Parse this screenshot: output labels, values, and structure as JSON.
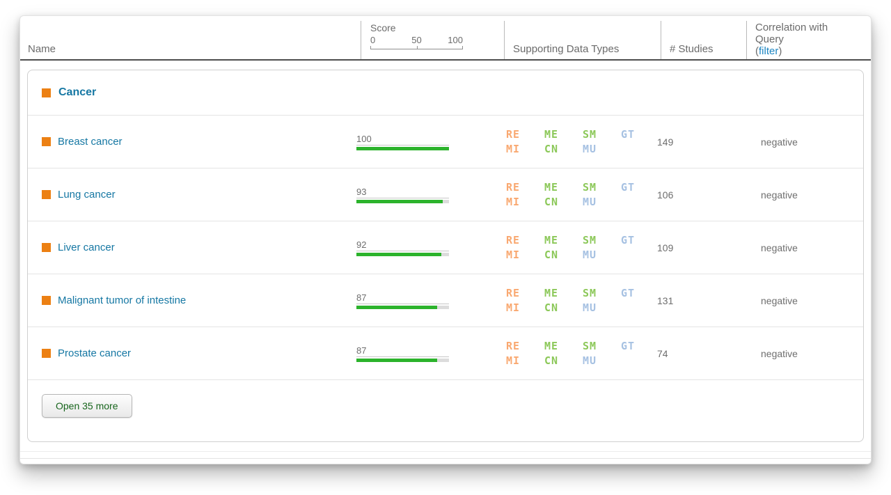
{
  "header": {
    "name": "Name",
    "score_label": "Score",
    "scale_ticks": [
      "0",
      "50",
      "100"
    ],
    "data_types": "Supporting Data Types",
    "studies": "# Studies",
    "correlation": {
      "line1": "Correlation with",
      "line2": "Query",
      "paren_open": "(",
      "filter": "filter",
      "paren_close": ")"
    }
  },
  "group": {
    "label": "Cancer"
  },
  "rows": [
    {
      "name": "Breast cancer",
      "score": 100,
      "studies": "149",
      "correlation": "negative"
    },
    {
      "name": "Lung cancer",
      "score": 93,
      "studies": "106",
      "correlation": "negative"
    },
    {
      "name": "Liver cancer",
      "score": 92,
      "studies": "109",
      "correlation": "negative"
    },
    {
      "name": "Malignant tumor of intestine",
      "score": 87,
      "studies": "131",
      "correlation": "negative"
    },
    {
      "name": "Prostate cancer",
      "score": 87,
      "studies": "74",
      "correlation": "negative"
    }
  ],
  "badges": [
    {
      "code": "RE",
      "kind": "orange"
    },
    {
      "code": "ME",
      "kind": "green"
    },
    {
      "code": "SM",
      "kind": "green"
    },
    {
      "code": "GT",
      "kind": "blue"
    },
    {
      "code": "MI",
      "kind": "orange"
    },
    {
      "code": "CN",
      "kind": "green"
    },
    {
      "code": "MU",
      "kind": "blue"
    }
  ],
  "button": {
    "label": "Open 35 more"
  },
  "colors": {
    "badge": {
      "orange": "#F9A870",
      "green": "#8CC859",
      "blue": "#A6C1E2"
    },
    "bar_fill": "#2CB32C",
    "bar_track": "#dcdcdc",
    "group_square": "#EC8013",
    "link_blue": "#1577A3",
    "filter_link_blue": "#1b85c2",
    "button_text_green": "#17651c"
  }
}
